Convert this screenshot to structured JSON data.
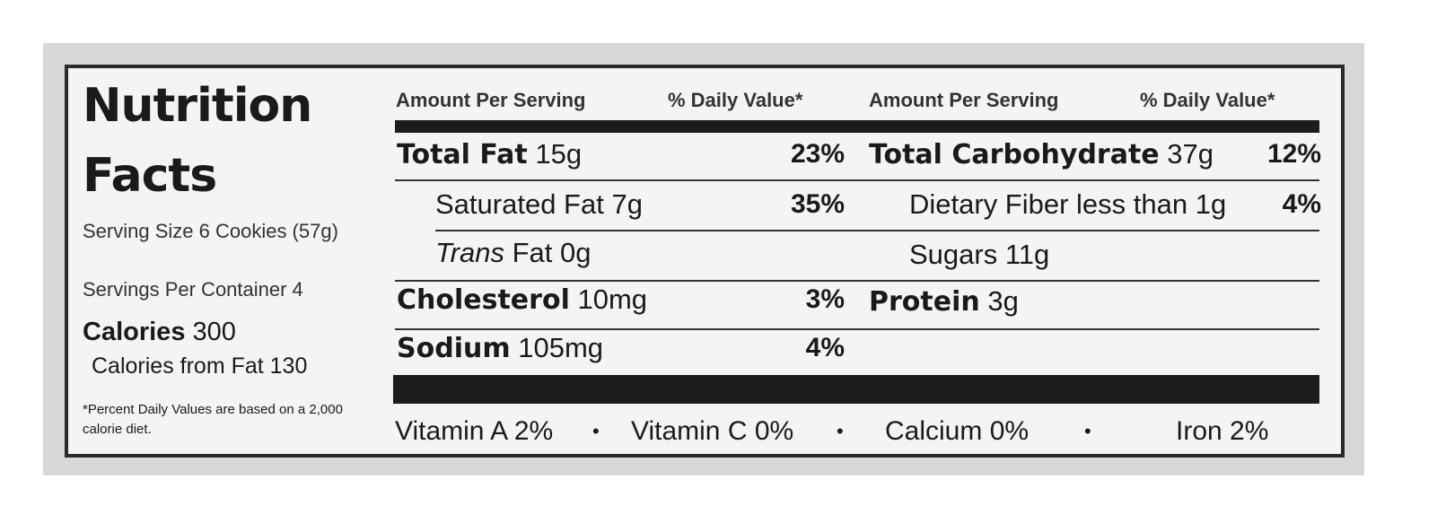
{
  "label": {
    "title_lines": [
      "Nutrition",
      "Facts"
    ],
    "serving_size": "Serving Size 6 Cookies (57g)",
    "servings_per_container": "Servings Per Container 4",
    "calories": {
      "label": "Calories",
      "amount": "300"
    },
    "calories_from_fat": "Calories from Fat 130",
    "footnote": "*Percent Daily Values are based on a 2,000 calorie diet.",
    "headers": [
      {
        "amount": "Amount Per Serving",
        "daily_value": "% Daily Value*"
      },
      {
        "amount": "Amount Per Serving",
        "daily_value": "% Daily Value*"
      }
    ],
    "left_rows": [
      {
        "name": "Total Fat",
        "amount": "15g",
        "daily_value": "23%"
      },
      {
        "name": "Saturated Fat",
        "amount": "7g",
        "daily_value": "35%"
      },
      {
        "name_italic": "Trans",
        "name": "Fat",
        "amount": "0g"
      },
      {
        "name": "Cholesterol",
        "amount": "10mg",
        "daily_value": "3%"
      },
      {
        "name": "Sodium",
        "amount": "105mg",
        "daily_value": "4%"
      }
    ],
    "right_rows": [
      {
        "name": "Total Carbohydrate",
        "amount": "37g",
        "daily_value": "12%"
      },
      {
        "name": "Dietary Fiber less than",
        "amount": "1g",
        "daily_value": "4%"
      },
      {
        "name": "Sugars",
        "amount": "11g"
      },
      {
        "name": "Protein",
        "amount": "3g"
      }
    ],
    "vitamins": [
      "Vitamin A 2%",
      "Vitamin C 0%",
      "Calcium 0%",
      "Iron 2%"
    ]
  }
}
